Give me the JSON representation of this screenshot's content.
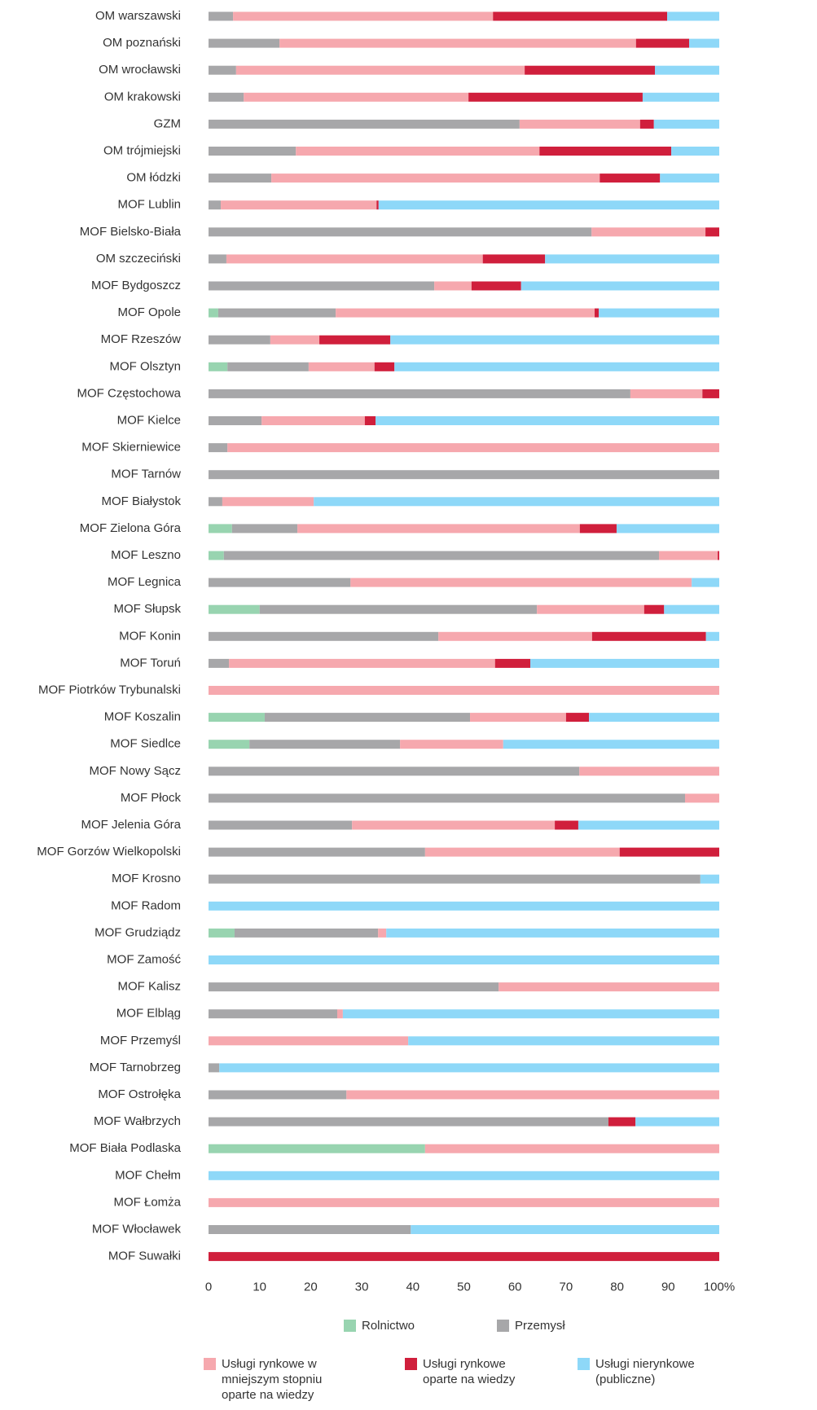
{
  "chart_data": {
    "type": "stacked_barh",
    "categories": [
      "OM warszawski",
      "OM poznański",
      "OM wrocławski",
      "OM krakowski",
      "GZM",
      "OM trójmiejski",
      "OM łódzki",
      "MOF Lublin",
      "MOF Bielsko-Biała",
      "OM szczeciński",
      "MOF Bydgoszcz",
      "MOF Opole",
      "MOF Rzeszów",
      "MOF Olsztyn",
      "MOF Częstochowa",
      "MOF Kielce",
      "MOF Skierniewice",
      "MOF Tarnów",
      "MOF Białystok",
      "MOF Zielona Góra",
      "MOF Leszno",
      "MOF Legnica",
      "MOF Słupsk",
      "MOF Konin",
      "MOF Toruń",
      "MOF Piotrków Trybunalski",
      "MOF Koszalin",
      "MOF Siedlce",
      "MOF Nowy Sącz",
      "MOF Płock",
      "MOF Jelenia Góra",
      "MOF Gorzów Wielkopolski",
      "MOF Krosno",
      "MOF Radom",
      "MOF Grudziądz",
      "MOF Zamość",
      "MOF Kalisz",
      "MOF Elbląg",
      "MOF Przemyśl",
      "MOF Tarnobrzeg",
      "MOF Ostrołęka",
      "MOF Wałbrzych",
      "MOF Biała Podlaska",
      "MOF Chełm",
      "MOF Łomża",
      "MOF Włocławek",
      "MOF Suwałki"
    ],
    "series": [
      {
        "name": "Rolnictwo",
        "color": "#98d4b0",
        "values": [
          0,
          0,
          0,
          0,
          0,
          0,
          0,
          0,
          0,
          0,
          0,
          1.9,
          0,
          3.7,
          0,
          0,
          0,
          0,
          0,
          4.6,
          3,
          0,
          10,
          0,
          0,
          0,
          11,
          8,
          0,
          0,
          0,
          0,
          0,
          0,
          5.1,
          0,
          0,
          0,
          0,
          0,
          0,
          0,
          42.4,
          0,
          0,
          0,
          0
        ]
      },
      {
        "name": "Przemysł",
        "color": "#a7a7a9",
        "values": [
          4.8,
          13.9,
          5.4,
          6.9,
          60.9,
          17.1,
          12.3,
          2.4,
          75,
          3.5,
          44.2,
          23,
          12.1,
          15.9,
          82.6,
          10.4,
          3.7,
          100,
          2.7,
          12.8,
          85.2,
          27.8,
          54.3,
          45,
          4,
          0,
          40.2,
          29.5,
          72.6,
          93.3,
          28.1,
          42.4,
          96.3,
          0,
          28.1,
          0,
          56.8,
          25.2,
          0,
          2.1,
          27,
          78.3,
          0,
          0,
          0,
          39.6,
          0
        ]
      },
      {
        "name": "Usługi rynkowe w mniejszym stopniu oparte na wiedzy",
        "color": "#f6a8ae",
        "values": [
          50.9,
          69.8,
          56.5,
          44,
          23.6,
          47.7,
          64.3,
          30.5,
          22.3,
          50.2,
          7.3,
          50.7,
          9.6,
          12.9,
          14.1,
          20.2,
          96.3,
          0,
          17.9,
          55.3,
          11.5,
          66.8,
          21,
          30.1,
          52.1,
          100,
          18.8,
          20.2,
          27.4,
          6.7,
          39.7,
          38.1,
          0,
          0,
          1.6,
          0,
          43.2,
          1.1,
          39.1,
          0,
          73,
          0,
          57.6,
          0,
          100,
          0,
          0
        ]
      },
      {
        "name": "Usługi rynkowe oparte na wiedzy",
        "color": "#d01f3c",
        "values": [
          34.1,
          10.4,
          25.5,
          34.1,
          2.7,
          25.8,
          11.8,
          0.4,
          2.7,
          12.2,
          9.7,
          0.8,
          13.9,
          3.9,
          3.3,
          2.1,
          0,
          0,
          0,
          7.2,
          0.3,
          0,
          3.9,
          22.3,
          6.9,
          0,
          4.5,
          0,
          0,
          0,
          4.6,
          19.5,
          0,
          0,
          0,
          0,
          0,
          0,
          0,
          0,
          0,
          5.3,
          0,
          0,
          0,
          0,
          100
        ]
      },
      {
        "name": "Usługi nierynkowe (publiczne)",
        "color": "#8ed8f8",
        "values": [
          10.2,
          5.9,
          12.6,
          15,
          12.8,
          9.4,
          11.6,
          66.7,
          0,
          34.1,
          38.8,
          23.6,
          64.4,
          63.6,
          0,
          67.3,
          0,
          0,
          79.4,
          20.1,
          0,
          5.4,
          10.8,
          2.6,
          37,
          0,
          25.5,
          42.3,
          0,
          0,
          27.6,
          0,
          3.7,
          100,
          65.2,
          100,
          0,
          73.7,
          60.9,
          97.9,
          0,
          16.4,
          0,
          100,
          0,
          60.4,
          0
        ]
      }
    ],
    "xlim": [
      0,
      100
    ],
    "xticks": [
      0,
      10,
      20,
      30,
      40,
      50,
      60,
      70,
      80,
      90,
      {
        "value": 100,
        "label": "100%"
      }
    ]
  }
}
